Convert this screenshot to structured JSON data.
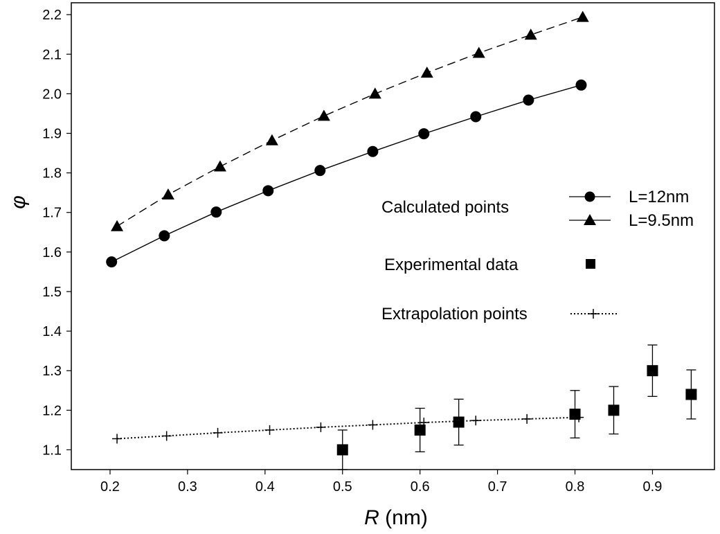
{
  "chart_data": {
    "type": "scatter",
    "title": "",
    "xlabel_italic": "R",
    "xlabel_unit": " (nm)",
    "ylabel": "φ",
    "xlim": [
      0.15,
      0.98
    ],
    "ylim": [
      1.05,
      2.23
    ],
    "x_ticks": [
      0.2,
      0.3,
      0.4,
      0.5,
      0.6,
      0.7,
      0.8,
      0.9
    ],
    "y_ticks": [
      1.1,
      1.2,
      1.3,
      1.4,
      1.5,
      1.6,
      1.7,
      1.8,
      1.9,
      2.0,
      2.1,
      2.2
    ],
    "series": [
      {
        "name": "L=12nm",
        "marker": "circle",
        "line": "solid",
        "x": [
          0.202,
          0.27,
          0.337,
          0.404,
          0.471,
          0.539,
          0.605,
          0.672,
          0.74,
          0.808
        ],
        "y": [
          1.575,
          1.641,
          1.701,
          1.755,
          1.806,
          1.854,
          1.899,
          1.942,
          1.984,
          2.022
        ]
      },
      {
        "name": "L=9.5nm",
        "marker": "triangle",
        "line": "dashed",
        "x": [
          0.209,
          0.275,
          0.342,
          0.409,
          0.476,
          0.542,
          0.609,
          0.676,
          0.743,
          0.81
        ],
        "y": [
          1.665,
          1.745,
          1.816,
          1.882,
          1.944,
          2.0,
          2.053,
          2.103,
          2.149,
          2.194
        ]
      },
      {
        "name": "Experimental data",
        "marker": "square",
        "line": "none",
        "x": [
          0.5,
          0.6,
          0.65,
          0.8,
          0.85,
          0.9,
          0.95
        ],
        "y": [
          1.1,
          1.15,
          1.17,
          1.19,
          1.2,
          1.3,
          1.24
        ],
        "error": [
          0.05,
          0.055,
          0.058,
          0.06,
          0.06,
          0.065,
          0.062
        ]
      },
      {
        "name": "Extrapolation points",
        "marker": "plus",
        "line": "dotted",
        "x": [
          0.209,
          0.273,
          0.339,
          0.406,
          0.472,
          0.539,
          0.605,
          0.672,
          0.738,
          0.805
        ],
        "y": [
          1.128,
          1.135,
          1.143,
          1.15,
          1.157,
          1.163,
          1.169,
          1.174,
          1.178,
          1.182
        ]
      }
    ],
    "legend": {
      "calculated_label": "Calculated points",
      "l12_label": "L=12nm",
      "l95_label": "L=9.5nm",
      "experimental_label": "Experimental data",
      "extrapolation_label": "Extrapolation points"
    }
  }
}
